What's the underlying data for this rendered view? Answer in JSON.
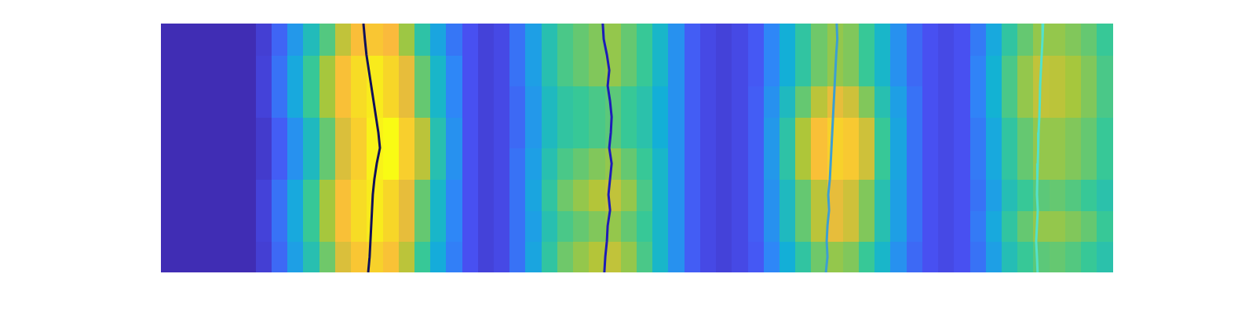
{
  "chart_data": {
    "type": "heatmap",
    "xlim": [
      0,
      60
    ],
    "ylim": [
      0,
      8
    ],
    "tick_labels": false,
    "clim": [
      0,
      1
    ],
    "cells": [
      [
        0.02,
        0.02,
        0.02,
        0.02,
        0.02,
        0.02,
        0.07,
        0.18,
        0.32,
        0.45,
        0.56,
        0.7,
        0.81,
        0.86,
        0.79,
        0.65,
        0.5,
        0.36,
        0.23,
        0.12,
        0.08,
        0.1,
        0.2,
        0.34,
        0.48,
        0.56,
        0.6,
        0.64,
        0.66,
        0.6,
        0.52,
        0.4,
        0.28,
        0.15,
        0.1,
        0.08,
        0.1,
        0.14,
        0.25,
        0.37,
        0.48,
        0.56,
        0.6,
        0.58,
        0.5,
        0.4,
        0.28,
        0.18,
        0.12,
        0.1,
        0.12,
        0.2,
        0.32,
        0.44,
        0.5,
        0.54,
        0.55,
        0.53,
        0.5,
        0.46
      ],
      [
        0.02,
        0.02,
        0.02,
        0.02,
        0.02,
        0.02,
        0.08,
        0.2,
        0.35,
        0.5,
        0.62,
        0.78,
        0.9,
        0.95,
        0.88,
        0.72,
        0.55,
        0.4,
        0.25,
        0.12,
        0.08,
        0.1,
        0.2,
        0.32,
        0.45,
        0.52,
        0.55,
        0.58,
        0.6,
        0.55,
        0.5,
        0.4,
        0.28,
        0.15,
        0.1,
        0.08,
        0.1,
        0.15,
        0.28,
        0.42,
        0.55,
        0.65,
        0.72,
        0.68,
        0.58,
        0.45,
        0.32,
        0.2,
        0.12,
        0.1,
        0.12,
        0.22,
        0.35,
        0.48,
        0.55,
        0.6,
        0.6,
        0.58,
        0.55,
        0.5
      ],
      [
        0.02,
        0.02,
        0.02,
        0.02,
        0.02,
        0.02,
        0.08,
        0.2,
        0.35,
        0.5,
        0.62,
        0.78,
        0.9,
        0.95,
        0.88,
        0.72,
        0.55,
        0.4,
        0.25,
        0.12,
        0.08,
        0.1,
        0.2,
        0.34,
        0.48,
        0.56,
        0.6,
        0.64,
        0.66,
        0.6,
        0.52,
        0.4,
        0.28,
        0.15,
        0.1,
        0.08,
        0.1,
        0.15,
        0.28,
        0.42,
        0.55,
        0.65,
        0.72,
        0.68,
        0.58,
        0.45,
        0.32,
        0.2,
        0.12,
        0.1,
        0.12,
        0.2,
        0.32,
        0.44,
        0.5,
        0.54,
        0.55,
        0.53,
        0.5,
        0.46
      ],
      [
        0.02,
        0.02,
        0.02,
        0.02,
        0.02,
        0.02,
        0.06,
        0.15,
        0.28,
        0.42,
        0.55,
        0.7,
        0.85,
        0.97,
        1,
        0.85,
        0.65,
        0.45,
        0.28,
        0.12,
        0.08,
        0.1,
        0.2,
        0.32,
        0.45,
        0.52,
        0.55,
        0.58,
        0.6,
        0.55,
        0.5,
        0.4,
        0.28,
        0.15,
        0.1,
        0.08,
        0.1,
        0.15,
        0.3,
        0.47,
        0.63,
        0.78,
        0.86,
        0.82,
        0.68,
        0.5,
        0.34,
        0.2,
        0.12,
        0.1,
        0.12,
        0.22,
        0.35,
        0.48,
        0.55,
        0.6,
        0.6,
        0.58,
        0.55,
        0.5
      ],
      [
        0.02,
        0.02,
        0.02,
        0.02,
        0.02,
        0.02,
        0.06,
        0.15,
        0.28,
        0.42,
        0.55,
        0.7,
        0.85,
        0.97,
        1,
        0.85,
        0.65,
        0.45,
        0.28,
        0.12,
        0.08,
        0.1,
        0.18,
        0.3,
        0.42,
        0.48,
        0.5,
        0.52,
        0.54,
        0.5,
        0.46,
        0.37,
        0.28,
        0.15,
        0.1,
        0.08,
        0.1,
        0.15,
        0.3,
        0.47,
        0.63,
        0.78,
        0.86,
        0.82,
        0.68,
        0.5,
        0.34,
        0.2,
        0.12,
        0.1,
        0.12,
        0.22,
        0.35,
        0.48,
        0.55,
        0.6,
        0.6,
        0.58,
        0.55,
        0.5
      ],
      [
        0.02,
        0.02,
        0.02,
        0.02,
        0.02,
        0.02,
        0.08,
        0.2,
        0.35,
        0.5,
        0.62,
        0.78,
        0.9,
        0.95,
        0.88,
        0.72,
        0.55,
        0.4,
        0.25,
        0.12,
        0.08,
        0.1,
        0.18,
        0.3,
        0.42,
        0.48,
        0.5,
        0.52,
        0.54,
        0.5,
        0.46,
        0.37,
        0.28,
        0.15,
        0.1,
        0.08,
        0.1,
        0.15,
        0.28,
        0.42,
        0.55,
        0.65,
        0.72,
        0.68,
        0.58,
        0.45,
        0.32,
        0.2,
        0.12,
        0.1,
        0.12,
        0.24,
        0.38,
        0.52,
        0.6,
        0.66,
        0.65,
        0.62,
        0.58,
        0.52
      ],
      [
        0.02,
        0.02,
        0.02,
        0.02,
        0.02,
        0.02,
        0.08,
        0.2,
        0.35,
        0.5,
        0.62,
        0.78,
        0.9,
        0.95,
        0.88,
        0.72,
        0.55,
        0.4,
        0.25,
        0.12,
        0.08,
        0.1,
        0.2,
        0.32,
        0.45,
        0.52,
        0.55,
        0.58,
        0.6,
        0.55,
        0.5,
        0.4,
        0.28,
        0.15,
        0.1,
        0.08,
        0.1,
        0.14,
        0.25,
        0.37,
        0.48,
        0.56,
        0.6,
        0.58,
        0.5,
        0.4,
        0.28,
        0.18,
        0.12,
        0.1,
        0.12,
        0.24,
        0.38,
        0.52,
        0.6,
        0.66,
        0.65,
        0.62,
        0.58,
        0.52
      ],
      [
        0.02,
        0.02,
        0.02,
        0.02,
        0.02,
        0.02,
        0.07,
        0.17,
        0.3,
        0.43,
        0.53,
        0.66,
        0.77,
        0.81,
        0.75,
        0.61,
        0.47,
        0.34,
        0.21,
        0.12,
        0.08,
        0.1,
        0.2,
        0.32,
        0.45,
        0.52,
        0.55,
        0.58,
        0.6,
        0.55,
        0.5,
        0.4,
        0.28,
        0.15,
        0.1,
        0.08,
        0.1,
        0.14,
        0.25,
        0.37,
        0.48,
        0.56,
        0.6,
        0.58,
        0.5,
        0.4,
        0.28,
        0.18,
        0.12,
        0.1,
        0.12,
        0.22,
        0.35,
        0.48,
        0.55,
        0.6,
        0.6,
        0.58,
        0.55,
        0.5
      ]
    ],
    "series": [
      {
        "type": "line",
        "color": "#10105a",
        "line_style": "solid",
        "marker": "none",
        "x": [
          12.76,
          12.85,
          12.95,
          13.1,
          13.25,
          13.4,
          13.55,
          13.7,
          13.8,
          13.6,
          13.45,
          13.35,
          13.3,
          13.25,
          13.2,
          13.15,
          13.06
        ],
        "y": [
          8,
          7.5,
          7,
          6.5,
          6,
          5.5,
          5,
          4.5,
          4,
          3.5,
          3,
          2.5,
          2,
          1.5,
          1,
          0.5,
          0
        ]
      },
      {
        "type": "line",
        "color": "#1c1cb8",
        "line_style": "solid",
        "marker": "none",
        "x": [
          27.84,
          27.9,
          28.1,
          28.25,
          28.15,
          28.3,
          28.4,
          28.35,
          28.25,
          28.4,
          28.3,
          28.2,
          28.3,
          28.15,
          28.1,
          28.0,
          27.94
        ],
        "y": [
          8,
          7.5,
          7,
          6.5,
          6,
          5.5,
          5,
          4.5,
          4,
          3.5,
          3,
          2.5,
          2,
          1.5,
          1,
          0.5,
          0
        ]
      },
      {
        "type": "line",
        "color": "#3c9fd2",
        "line_style": "solid",
        "marker": "none",
        "x": [
          42.58,
          42.62,
          42.55,
          42.5,
          42.45,
          42.4,
          42.35,
          42.3,
          42.25,
          42.2,
          42.15,
          42.05,
          42.1,
          42.0,
          41.95,
          42.0,
          41.9
        ],
        "y": [
          8,
          7.5,
          7,
          6.5,
          6,
          5.5,
          5,
          4.5,
          4,
          3.5,
          3,
          2.5,
          2,
          1.5,
          1,
          0.5,
          0
        ]
      },
      {
        "type": "line",
        "color": "#52e2cc",
        "line_style": "solid",
        "marker": "none",
        "x": [
          55.59,
          55.55,
          55.5,
          55.45,
          55.4,
          55.38,
          55.35,
          55.3,
          55.28,
          55.25,
          55.22,
          55.2,
          55.25,
          55.2,
          55.15,
          55.2,
          55.24
        ],
        "y": [
          8,
          7.5,
          7,
          6.5,
          6,
          5.5,
          5,
          4.5,
          4,
          3.5,
          3,
          2.5,
          2,
          1.5,
          1,
          0.5,
          0
        ]
      }
    ]
  }
}
